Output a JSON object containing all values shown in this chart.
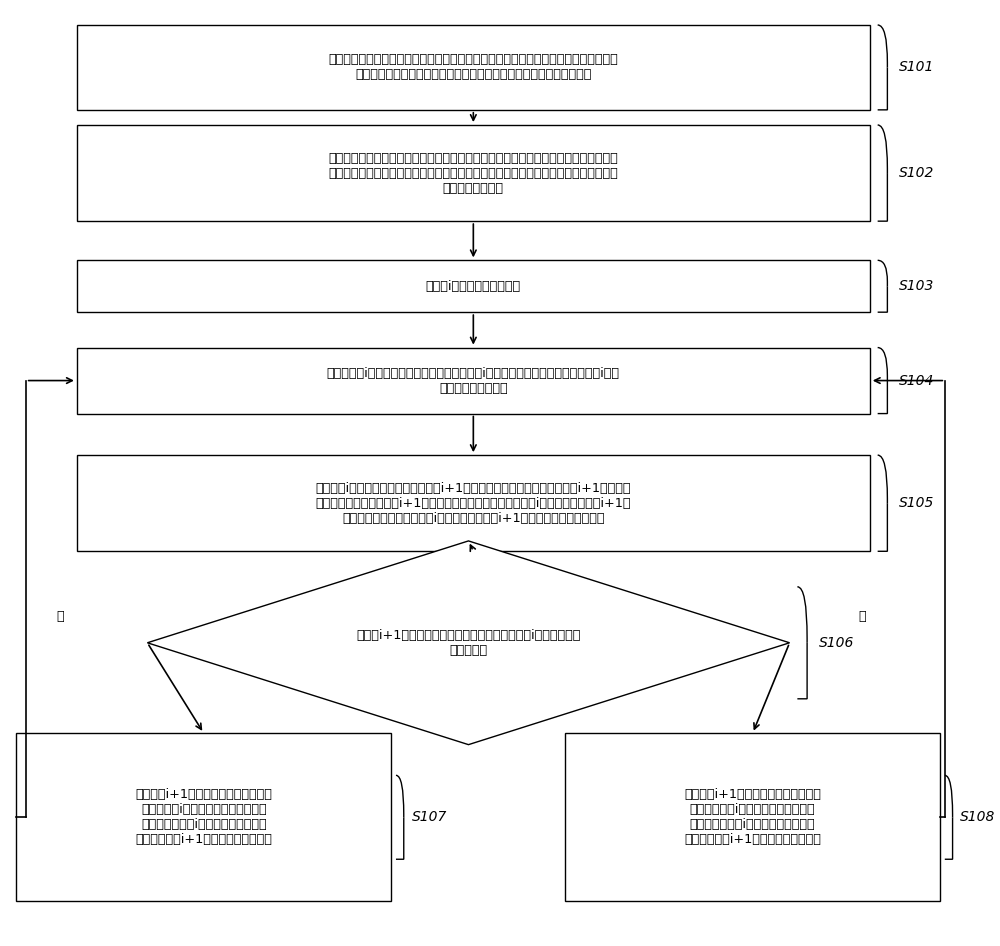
{
  "bg_color": "#ffffff",
  "box_edge_color": "#000000",
  "text_color": "#000000",
  "font_size": 9.2,
  "s101_text": "获取水下无线传感器网络拓扑结构；所述水下无线传感器网络拓扑结构为树形无线网络\n拓扑结构；一个父节点对应多个子节点；一个子节点对应多个叶子节点",
  "s102_text": "根据所述水下无线传感器网络拓扑结构，获取每个节点的信息；所述节点的信息包括节\n点的位置、节点的类型、节点的层级和节点的剩余能量；所述节点的类型包括父节点、\n子节点和叶子节点",
  "s103_text": "获取第i个子节点的发送时刻",
  "s104_text": "根据所述第i个子节点的发送时刻，确定所述第i个子节点的开始接收时刻和所述第i个子\n节点的完全接收时刻",
  "s105_text": "以所述第i个子节点的发送时刻作为第i+1个子节点的发送时刻，确定所述第i+1个子节点\n的开始接收时刻和所述第i+1个子节点的完全接收时刻；所述第i个子节点和所述第i+1个\n子节点的位置不同；所述第i个子节点和所述第i+1个子节点的父节点相同；",
  "s106_text": "所述第i+1个子节点的开始接收时刻是小于所述第i个子节点的完\n全接收时刻",
  "s107_text": "当所述第i+1个子节点的开始接收时刻\n小于所述第i个子节点的完全接收时刻\n时，根据所述第i个子节点的完全接收\n时刻，确定第i+1个子节点的发送时刻",
  "s108_text": "当所述第i+1个子节点的开始接收时刻\n不小于所述第i个子节点的完全接收时\n刻时，将所述第i个子节点的发送时刻\n确定为所述第i+1个子节点的发送时刻",
  "yes_text": "是",
  "no_text": "否"
}
